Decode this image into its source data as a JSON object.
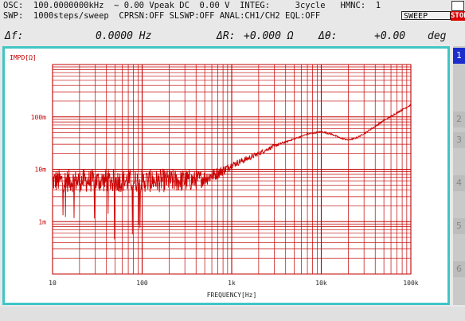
{
  "header": {
    "line1": "OSC:  100.0000000kHz  ~ 0.00 Vpeak DC  0.00 V  INTEG:     3cycle   HMNC:  1",
    "line2": "SWP:  1000steps/sweep  CPRSN:OFF SLSWP:OFF ANAL:CH1/CH2 EQL:OFF",
    "sweep_label": "SWEEP",
    "stop_label": "STOP",
    "delta_f_label": "Δf:",
    "delta_f_value": "0.0000 Hz",
    "delta_r_label": "ΔR:",
    "delta_r_value": "+0.000 Ω",
    "delta_theta_label": "Δθ:",
    "delta_theta_value": "+0.00",
    "delta_theta_unit": "deg"
  },
  "side_buttons": [
    "1",
    "2",
    "3",
    "4",
    "5",
    "6"
  ],
  "colors": {
    "trace": "#cc0000",
    "grid": "#c00000",
    "frame": "#41c5c5",
    "active_button": "#1a2ccc",
    "stop": "#e00000"
  },
  "chart_data": {
    "type": "line",
    "ylabel": "IMPD[Ω]",
    "xlabel": "FREQUENCY[Hz]",
    "x_scale": "log",
    "y_scale": "log",
    "xlim": [
      10,
      100000
    ],
    "ylim": [
      0.0001,
      1
    ],
    "x_ticks": [
      {
        "value": 10,
        "label": "10"
      },
      {
        "value": 100,
        "label": "100"
      },
      {
        "value": 1000,
        "label": "1k"
      },
      {
        "value": 10000,
        "label": "10k"
      },
      {
        "value": 100000,
        "label": "100k"
      }
    ],
    "y_ticks": [
      {
        "value": 0.1,
        "label": "100m"
      },
      {
        "value": 0.01,
        "label": "10m"
      },
      {
        "value": 0.001,
        "label": "1m"
      }
    ],
    "grid": true,
    "series": [
      {
        "x": [
          10,
          20,
          50,
          100,
          200,
          400,
          600,
          800,
          1000,
          1500,
          2000,
          3000,
          5000,
          7000,
          10000,
          13000,
          16000,
          20000,
          25000,
          30000,
          40000,
          50000,
          70000,
          100000
        ],
        "y": [
          0.006,
          0.006,
          0.006,
          0.006,
          0.006,
          0.0062,
          0.0075,
          0.0095,
          0.012,
          0.016,
          0.02,
          0.028,
          0.038,
          0.047,
          0.052,
          0.047,
          0.04,
          0.036,
          0.04,
          0.048,
          0.066,
          0.085,
          0.12,
          0.17
        ]
      }
    ]
  }
}
